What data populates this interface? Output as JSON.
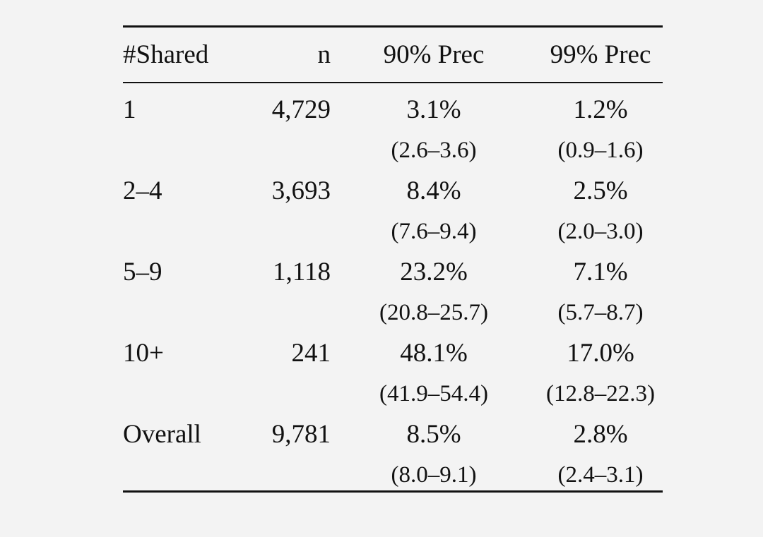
{
  "table": {
    "headers": {
      "group": "#Shared",
      "n": "n",
      "p90": "90% Prec",
      "p99": "99% Prec"
    },
    "rows": [
      {
        "group": "1",
        "n": "4,729",
        "p90": "3.1%",
        "p90_ci": "(2.6–3.6)",
        "p99": "1.2%",
        "p99_ci": "(0.9–1.6)"
      },
      {
        "group": "2–4",
        "n": "3,693",
        "p90": "8.4%",
        "p90_ci": "(7.6–9.4)",
        "p99": "2.5%",
        "p99_ci": "(2.0–3.0)"
      },
      {
        "group": "5–9",
        "n": "1,118",
        "p90": "23.2%",
        "p90_ci": "(20.8–25.7)",
        "p99": "7.1%",
        "p99_ci": "(5.7–8.7)"
      },
      {
        "group": "10+",
        "n": "241",
        "p90": "48.1%",
        "p90_ci": "(41.9–54.4)",
        "p99": "17.0%",
        "p99_ci": "(12.8–22.3)"
      },
      {
        "group": "Overall",
        "n": "9,781",
        "p90": "8.5%",
        "p90_ci": "(8.0–9.1)",
        "p99": "2.8%",
        "p99_ci": "(2.4–3.1)"
      }
    ]
  }
}
